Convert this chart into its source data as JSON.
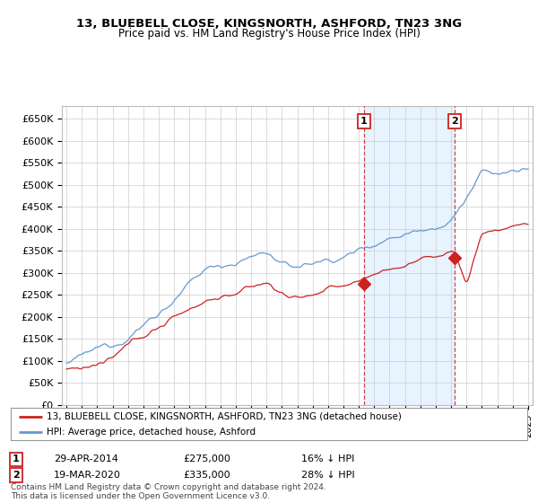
{
  "title": "13, BLUEBELL CLOSE, KINGSNORTH, ASHFORD, TN23 3NG",
  "subtitle": "Price paid vs. HM Land Registry's House Price Index (HPI)",
  "ylabel_values": [
    "£0",
    "£50K",
    "£100K",
    "£150K",
    "£200K",
    "£250K",
    "£300K",
    "£350K",
    "£400K",
    "£450K",
    "£500K",
    "£550K",
    "£600K",
    "£650K"
  ],
  "ylim": [
    0,
    680000
  ],
  "yticks": [
    0,
    50000,
    100000,
    150000,
    200000,
    250000,
    300000,
    350000,
    400000,
    450000,
    500000,
    550000,
    600000,
    650000
  ],
  "background_color": "#ffffff",
  "grid_color": "#cccccc",
  "shade_color": "#ddeeff",
  "red_color": "#cc2222",
  "blue_color": "#6699cc",
  "sale1_date": 2014.33,
  "sale1_price": 275000,
  "sale1_label": "1",
  "sale2_date": 2020.21,
  "sale2_price": 335000,
  "sale2_label": "2",
  "legend_line1": "13, BLUEBELL CLOSE, KINGSNORTH, ASHFORD, TN23 3NG (detached house)",
  "legend_line2": "HPI: Average price, detached house, Ashford",
  "note1_num": "1",
  "note1_date": "29-APR-2014",
  "note1_price": "£275,000",
  "note1_pct": "16% ↓ HPI",
  "note2_num": "2",
  "note2_date": "19-MAR-2020",
  "note2_price": "£335,000",
  "note2_pct": "28% ↓ HPI",
  "footer": "Contains HM Land Registry data © Crown copyright and database right 2024.\nThis data is licensed under the Open Government Licence v3.0."
}
